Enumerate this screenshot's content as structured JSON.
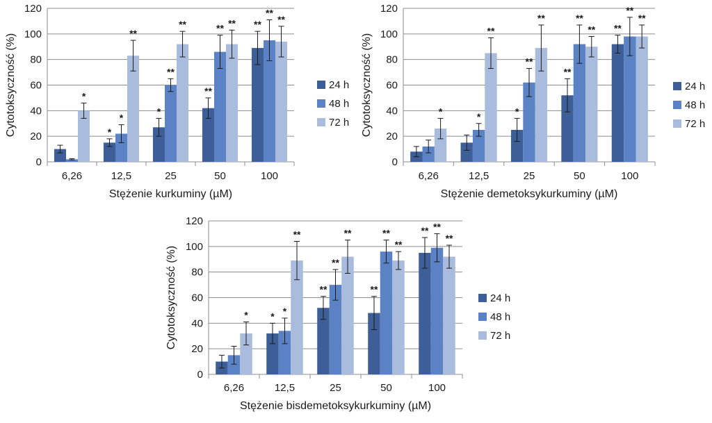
{
  "chart_data": [
    {
      "type": "bar",
      "xlabel": "Stężenie kurkuminy (µM)",
      "ylabel": "Cytotoksyczność (%)",
      "ylim": [
        0,
        120
      ],
      "yticks": [
        0,
        20,
        40,
        60,
        80,
        100,
        120
      ],
      "categories": [
        "6,26",
        "12,5",
        "25",
        "50",
        "100"
      ],
      "grid": "horizontal",
      "legend_position": "right",
      "series": [
        {
          "name": "24 h",
          "values": [
            10,
            15,
            27,
            42,
            89
          ],
          "errors": [
            3,
            3,
            7,
            8,
            13
          ],
          "significance": [
            "",
            "*",
            "*",
            "**",
            "**"
          ]
        },
        {
          "name": "48 h",
          "values": [
            2,
            22,
            60,
            86,
            95
          ],
          "errors": [
            0.5,
            7,
            5,
            13,
            16
          ],
          "significance": [
            "",
            "*",
            "**",
            "**",
            "**"
          ]
        },
        {
          "name": "72 h",
          "values": [
            40,
            83,
            92,
            92,
            94
          ],
          "errors": [
            6,
            12,
            10,
            11,
            12
          ],
          "significance": [
            "*",
            "**",
            "**",
            "**",
            "**"
          ]
        }
      ]
    },
    {
      "type": "bar",
      "xlabel": "Stężenie demetoksykurkuminy (µM)",
      "ylabel": "Cytotoksyczność (%)",
      "ylim": [
        0,
        120
      ],
      "yticks": [
        0,
        20,
        40,
        60,
        80,
        100,
        120
      ],
      "categories": [
        "6,26",
        "12,5",
        "25",
        "50",
        "100"
      ],
      "grid": "horizontal",
      "legend_position": "right",
      "series": [
        {
          "name": "24 h",
          "values": [
            8,
            15,
            25,
            52,
            92
          ],
          "errors": [
            4,
            6,
            9,
            13,
            7
          ],
          "significance": [
            "",
            "",
            "*",
            "**",
            "**"
          ]
        },
        {
          "name": "48 h",
          "values": [
            12,
            25,
            62,
            92,
            98
          ],
          "errors": [
            5,
            5,
            11,
            15,
            15
          ],
          "significance": [
            "",
            "*",
            "**",
            "**",
            "**"
          ]
        },
        {
          "name": "72 h",
          "values": [
            26,
            85,
            89,
            90,
            98
          ],
          "errors": [
            8,
            12,
            18,
            8,
            9
          ],
          "significance": [
            "*",
            "**",
            "**",
            "**",
            "**"
          ]
        }
      ]
    },
    {
      "type": "bar",
      "xlabel": "Stężenie bisdemetoksykurkuminy (µM)",
      "ylabel": "Cytotoksyczność (%)",
      "ylim": [
        0,
        120
      ],
      "yticks": [
        0,
        20,
        40,
        60,
        80,
        100,
        120
      ],
      "categories": [
        "6,26",
        "12,5",
        "25",
        "50",
        "100"
      ],
      "grid": "horizontal",
      "legend_position": "right",
      "series": [
        {
          "name": "24 h",
          "values": [
            10,
            32,
            52,
            48,
            95
          ],
          "errors": [
            5,
            8,
            9,
            13,
            12
          ],
          "significance": [
            "",
            "*",
            "**",
            "**",
            "**"
          ]
        },
        {
          "name": "48 h",
          "values": [
            15,
            34,
            70,
            96,
            99
          ],
          "errors": [
            7,
            10,
            12,
            9,
            11
          ],
          "significance": [
            "",
            "*",
            "**",
            "**",
            "**"
          ]
        },
        {
          "name": "72 h",
          "values": [
            32,
            89,
            92,
            89,
            92
          ],
          "errors": [
            9,
            15,
            13,
            7,
            9
          ],
          "significance": [
            "*",
            "**",
            "**",
            "**",
            "**"
          ]
        }
      ]
    }
  ],
  "colors": {
    "24 h": "#3d5e96",
    "48 h": "#5b82c4",
    "72 h": "#a9bcde",
    "axis": "#8c8c8c",
    "grid": "#8c8c8c",
    "error": "#1a1a1a"
  }
}
